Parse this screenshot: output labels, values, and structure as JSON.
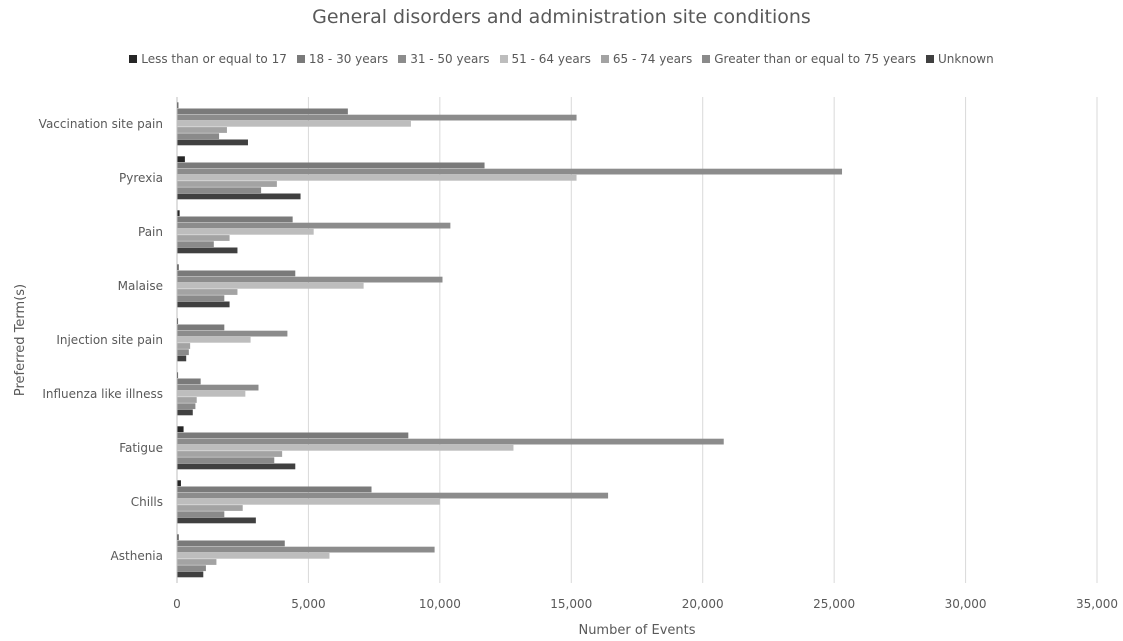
{
  "chart_data": {
    "type": "bar",
    "orientation": "horizontal",
    "title": "General disorders and administration site conditions",
    "xlabel": "Number of Events",
    "ylabel": "Preferred Term(s)",
    "xlim": [
      0,
      35000
    ],
    "xticks": [
      "0",
      "5,000",
      "10,000",
      "15,000",
      "20,000",
      "25,000",
      "30,000",
      "35,000"
    ],
    "xtick_values": [
      0,
      5000,
      10000,
      15000,
      20000,
      25000,
      30000,
      35000
    ],
    "grid": "vertical",
    "legend_position": "top",
    "categories": [
      "Vaccination site pain",
      "Pyrexia",
      "Pain",
      "Malaise",
      "Injection site pain",
      "Influenza like illness",
      "Fatigue",
      "Chills",
      "Asthenia"
    ],
    "series": [
      {
        "name": "Less than or equal to 17",
        "color": "#262626",
        "values": [
          50,
          300,
          100,
          60,
          40,
          40,
          250,
          150,
          60
        ]
      },
      {
        "name": "18 - 30 years",
        "color": "#7a7a7a",
        "values": [
          6500,
          11700,
          4400,
          4500,
          1800,
          900,
          8800,
          7400,
          4100
        ]
      },
      {
        "name": "31 - 50 years",
        "color": "#8c8c8c",
        "values": [
          15200,
          25300,
          10400,
          10100,
          4200,
          3100,
          20800,
          16400,
          9800
        ]
      },
      {
        "name": "51 - 64 years",
        "color": "#bdbdbd",
        "values": [
          8900,
          15200,
          5200,
          7100,
          2800,
          2600,
          12800,
          10000,
          5800
        ]
      },
      {
        "name": "65 - 74 years",
        "color": "#a3a3a3",
        "values": [
          1900,
          3800,
          2000,
          2300,
          500,
          750,
          4000,
          2500,
          1500
        ]
      },
      {
        "name": "Greater than or equal to 75 years",
        "color": "#8a8a8a",
        "values": [
          1600,
          3200,
          1400,
          1800,
          450,
          700,
          3700,
          1800,
          1100
        ]
      },
      {
        "name": "Unknown",
        "color": "#404040",
        "values": [
          2700,
          4700,
          2300,
          2000,
          350,
          600,
          4500,
          3000,
          1000
        ]
      }
    ]
  }
}
